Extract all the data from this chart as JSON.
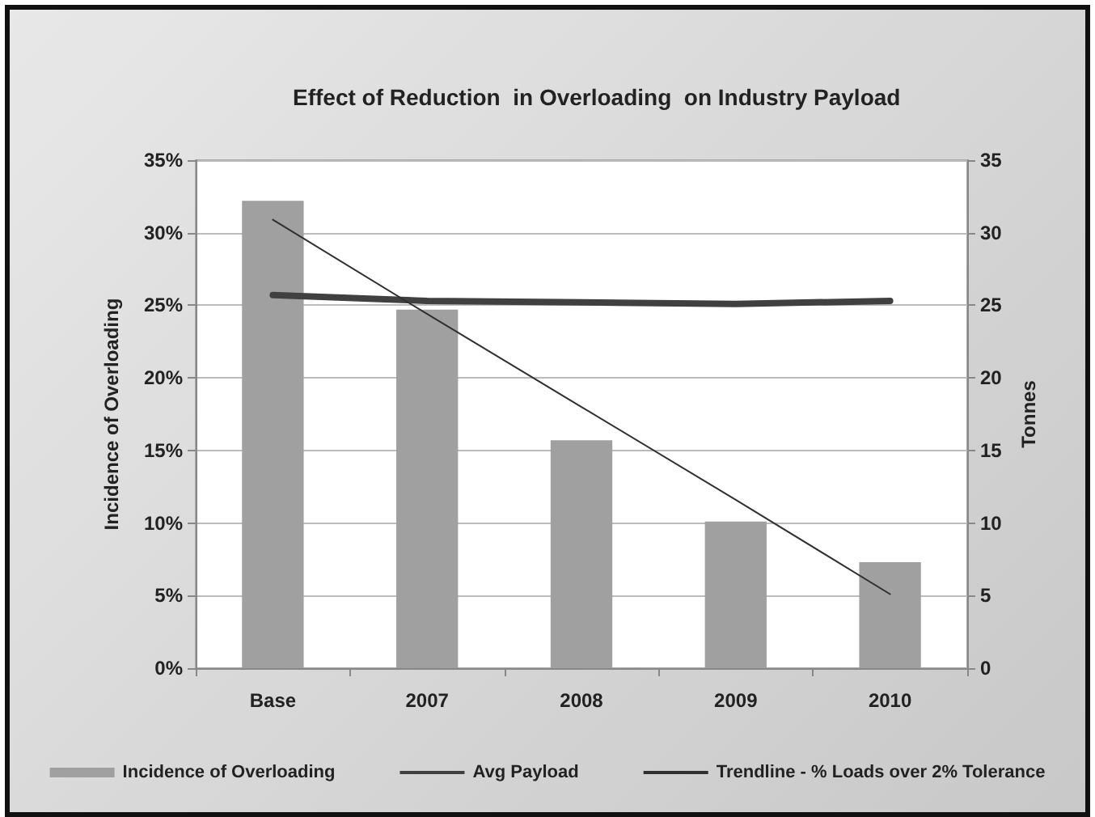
{
  "chart_data": {
    "type": "bar",
    "title": "Effect of Reduction  in Overloading  on Industry Payload",
    "ylabel": "Incidence of Overloading",
    "y2label": "Tonnes",
    "categories": [
      "Base",
      "2007",
      "2008",
      "2009",
      "2010"
    ],
    "series": [
      {
        "name": "Incidence of Overloading",
        "color": "#a0a0a0",
        "values": [
          32.2,
          24.7,
          15.7,
          10.1,
          7.3
        ]
      },
      {
        "name": "Avg Payload",
        "type": "line",
        "axis": "y2",
        "color": "#404040",
        "values": [
          25.7,
          25.3,
          25.2,
          25.1,
          25.3
        ]
      },
      {
        "name": "Trendline - % Loads over 2% Tolerance",
        "type": "line",
        "color": "#303030",
        "values": [
          30.9,
          24.4,
          18.0,
          11.6,
          5.1
        ]
      }
    ],
    "ylim": [
      0,
      35
    ],
    "yticks": [
      {
        "value": 0,
        "label": "0%"
      },
      {
        "value": 5,
        "label": "5%"
      },
      {
        "value": 10,
        "label": "10%"
      },
      {
        "value": 15,
        "label": "15%"
      },
      {
        "value": 20,
        "label": "20%"
      },
      {
        "value": 25,
        "label": "25%"
      },
      {
        "value": 30,
        "label": "30%"
      },
      {
        "value": 35,
        "label": "35%"
      }
    ],
    "y2lim": [
      0,
      35
    ],
    "y2ticks": [
      0,
      5,
      10,
      15,
      20,
      25,
      30,
      35
    ],
    "grid": "y",
    "legend": "bottom",
    "marker": "none"
  }
}
